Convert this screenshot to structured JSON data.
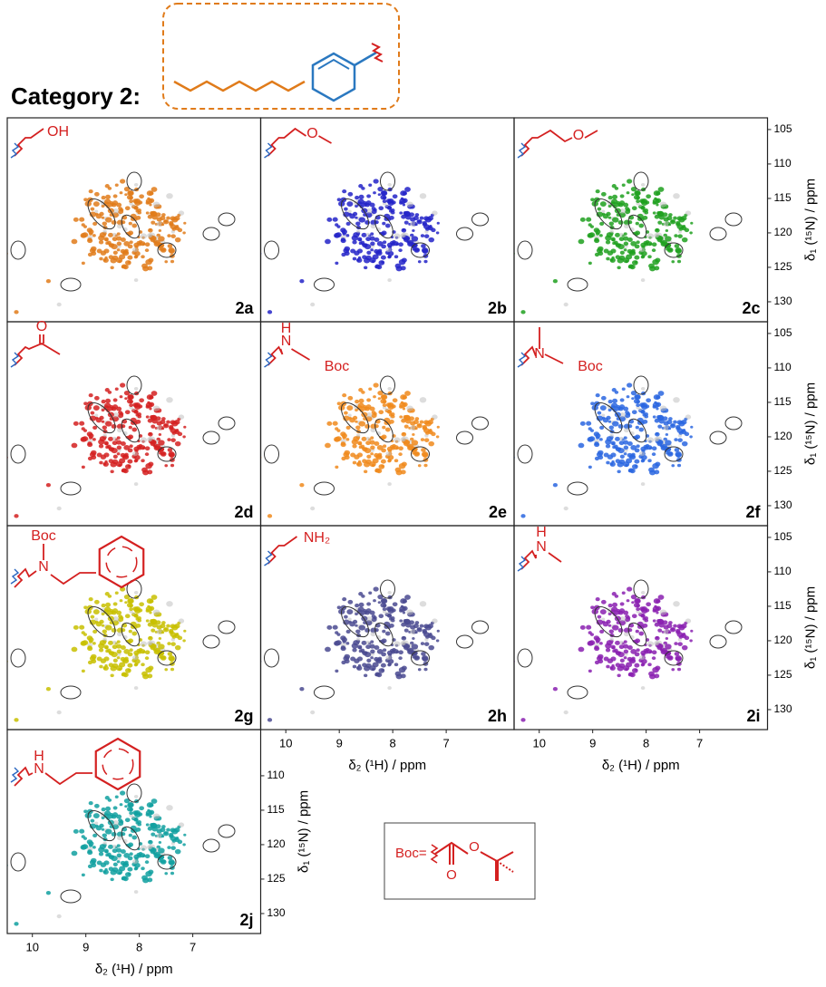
{
  "category_title": "Category 2:",
  "panels": [
    {
      "label": "2a",
      "color": "#e07b1a",
      "atoms": [
        "OH"
      ]
    },
    {
      "label": "2b",
      "color": "#2323c8",
      "atoms": [
        "O"
      ]
    },
    {
      "label": "2c",
      "color": "#1fa01f",
      "atoms": [
        "O"
      ]
    },
    {
      "label": "2d",
      "color": "#d42020",
      "atoms": [
        "O"
      ]
    },
    {
      "label": "2e",
      "color": "#f08a1c",
      "atoms": [
        "H",
        "N",
        "Boc"
      ]
    },
    {
      "label": "2f",
      "color": "#2a66e0",
      "atoms": [
        "N",
        "Boc"
      ]
    },
    {
      "label": "2g",
      "color": "#c8c000",
      "atoms": [
        "Boc",
        "N"
      ]
    },
    {
      "label": "2h",
      "color": "#4a4a90",
      "atoms": [
        "NH₂"
      ]
    },
    {
      "label": "2i",
      "color": "#8a20b0",
      "atoms": [
        "H",
        "N"
      ]
    },
    {
      "label": "2j",
      "color": "#10a0a0",
      "atoms": [
        "H",
        "N"
      ]
    }
  ],
  "x_axis": {
    "label": "δ₂ (¹H) / ppm",
    "lim": [
      10.47,
      5.73
    ],
    "ticks": [
      10,
      9,
      8,
      7
    ]
  },
  "y_axis": {
    "label": "δ₁ (¹⁵N) / ppm",
    "lim": [
      103.3,
      132.9
    ],
    "ticks": [
      105,
      110,
      115,
      120,
      125,
      130
    ]
  },
  "boc_legend": {
    "label": "Boc=",
    "atoms": [
      "O",
      "O"
    ]
  }
}
